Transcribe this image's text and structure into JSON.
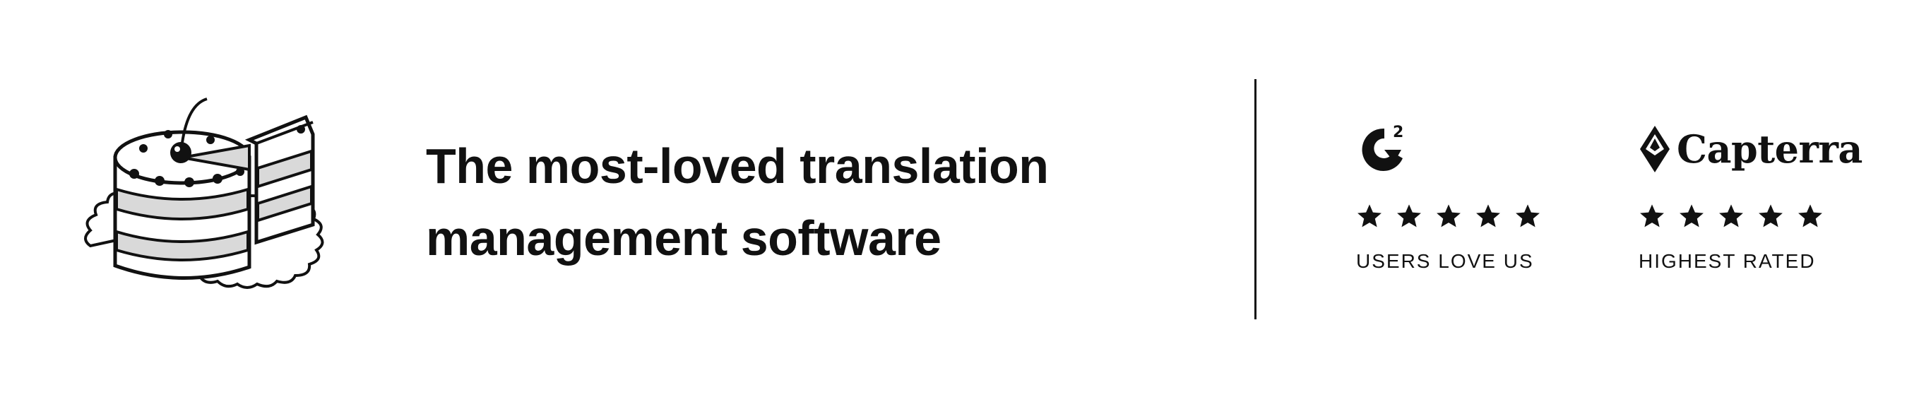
{
  "headline": {
    "line1": "The most-loved translation",
    "line2": "management software"
  },
  "badges": [
    {
      "logo_icon": "g2-logo-icon",
      "logo_text": "2",
      "stars": 5,
      "caption": "USERS LOVE US"
    },
    {
      "logo_icon": "capterra-logo-icon",
      "logo_text": "Capterra",
      "stars": 5,
      "caption": "HIGHEST RATED"
    }
  ],
  "illustration": "cake-illustration-icon",
  "colors": {
    "text": "#111111",
    "background": "#ffffff",
    "cake_stripe": "#d9d9d9"
  }
}
